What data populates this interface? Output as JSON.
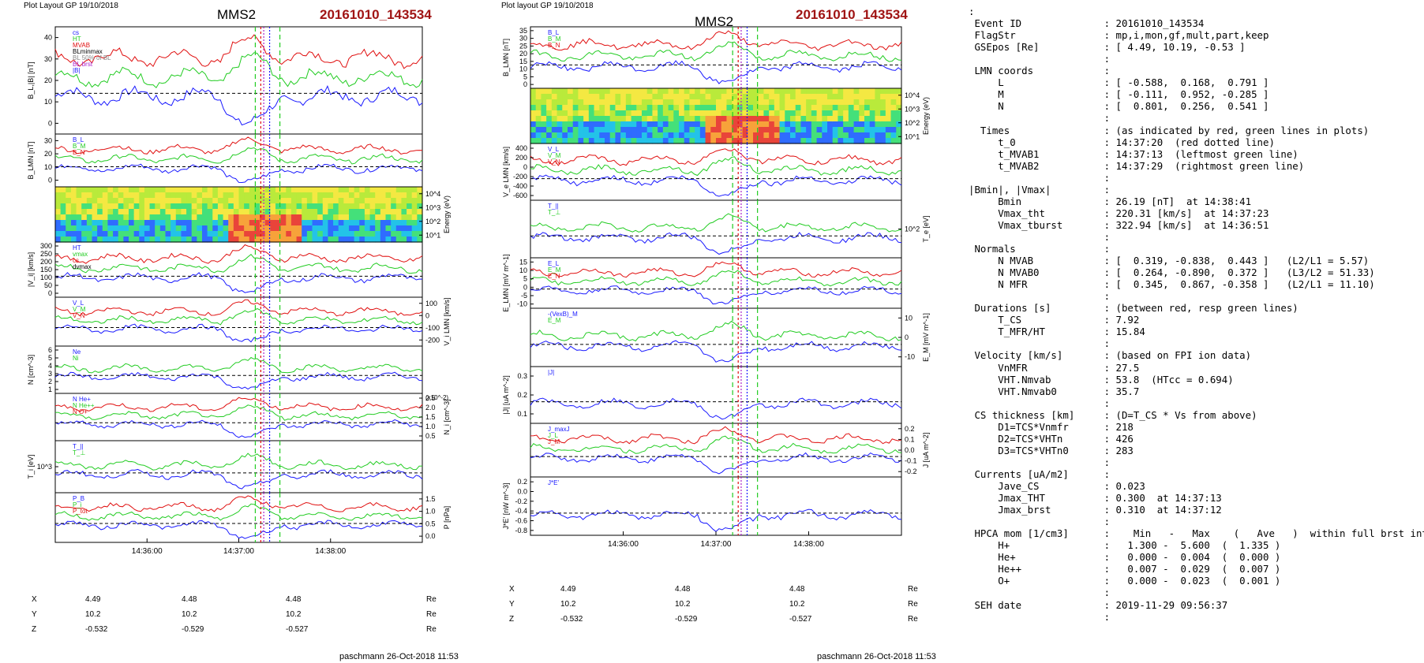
{
  "header": {
    "left_label": "Plot Layout GP 19/10/2018",
    "middle_label": "Plot layout GP 19/10/2018",
    "spacecraft": "MMS2",
    "event_id": "20161010_143534"
  },
  "footer": {
    "left_credit": "paschmann 26-Oct-2018 11:53",
    "middle_credit": "paschmann 26-Oct-2018 11:53"
  },
  "colors": {
    "blue": "#1a1aff",
    "red": "#e01010",
    "green": "#22cc22",
    "black": "#000000",
    "event_red": "#a01414",
    "grey": "#888888",
    "purple": "#aa22cc"
  },
  "chart_data": [
    {
      "type": "line",
      "figure": "left",
      "x_ticks": [
        "14:36:00",
        "14:37:00",
        "14:38:00"
      ],
      "markers": {
        "green_dashed": [
          "14:37:13",
          "14:37:29"
        ],
        "red_dotted": [
          "14:37:20"
        ]
      },
      "panels": [
        {
          "ylabel": "B_L,|B| [nT]",
          "yticks": [
            "0",
            "10",
            "20",
            "30",
            "40"
          ],
          "ylim": [
            -2,
            42
          ],
          "legend": [
            "cs",
            "HT",
            "MVAB",
            "BLminmax",
            "BL 50% of BL",
            "BL brst",
            "|B|"
          ]
        },
        {
          "ylabel": "B_LMN [nT]",
          "yticks": [
            "0",
            "10",
            "20",
            "30"
          ],
          "legend": [
            "B_L",
            "B_M",
            "B_N"
          ]
        },
        {
          "ylabel": "Energy (eV)",
          "yticks": [
            "10^1",
            "10^2",
            "10^3",
            "10^4"
          ],
          "type": "heatmap"
        },
        {
          "ylabel": "|V_i| [km/s]",
          "yticks": [
            "0",
            "50",
            "100",
            "150",
            "200",
            "250",
            "300"
          ],
          "legend": [
            "HT",
            "vmax",
            "cs",
            "dvmax"
          ]
        },
        {
          "ylabel": "V_i LMN [km/s]",
          "yticks": [
            "-200",
            "-100",
            "0",
            "100"
          ],
          "legend": [
            "V_L",
            "V_M",
            "V_N"
          ]
        },
        {
          "ylabel": "N [cm^-3]",
          "yticks": [
            "1",
            "2",
            "3",
            "4",
            "5",
            "6"
          ],
          "legend": [
            "Ne",
            "Ni"
          ]
        },
        {
          "ylabel": "N_i [cm^-3]",
          "yticks": [
            "0.5",
            "1.0",
            "1.5",
            "2.0",
            "2.5"
          ],
          "scale_note": "(x10^-2)",
          "legend": [
            "N He+",
            "N He++",
            "N O+"
          ]
        },
        {
          "ylabel": "T_i [eV]",
          "yticks": [
            "10^3"
          ],
          "legend": [
            "T_||",
            "T_⊥"
          ]
        },
        {
          "ylabel": "P [nPa]",
          "yticks": [
            "0.0",
            "0.5",
            "1.0",
            "1.5"
          ],
          "legend": [
            "P_B",
            "P_i",
            "P_tot"
          ]
        }
      ],
      "positions": {
        "rows": [
          {
            "label": "X",
            "values": [
              "4.49",
              "4.48",
              "4.48"
            ],
            "unit": "Re"
          },
          {
            "label": "Y",
            "values": [
              "10.2",
              "10.2",
              "10.2"
            ],
            "unit": "Re"
          },
          {
            "label": "Z",
            "values": [
              "-0.532",
              "-0.529",
              "-0.527"
            ],
            "unit": "Re"
          }
        ]
      }
    },
    {
      "type": "line",
      "figure": "middle",
      "x_ticks": [
        "14:36:00",
        "14:37:00",
        "14:38:00"
      ],
      "panels": [
        {
          "ylabel": "B_LMN [nT]",
          "yticks": [
            "0",
            "5",
            "10",
            "15",
            "20",
            "25",
            "30",
            "35"
          ],
          "legend": [
            "B_L",
            "B_M",
            "B_N"
          ]
        },
        {
          "ylabel": "Energy (eV)",
          "yticks": [
            "10^1",
            "10^2",
            "10^3",
            "10^4"
          ],
          "type": "heatmap"
        },
        {
          "ylabel": "V_e LMN [km/s]",
          "yticks": [
            "-600",
            "-400",
            "-200",
            "0",
            "200",
            "400"
          ],
          "legend": [
            "V_L",
            "V_M",
            "V_N"
          ]
        },
        {
          "ylabel": "T_e [eV]",
          "yticks": [
            "10^2"
          ],
          "legend": [
            "T_||",
            "T_⊥"
          ]
        },
        {
          "ylabel": "E_LMN [mV m^-1]",
          "yticks": [
            "-10",
            "-5",
            "0",
            "5",
            "10",
            "15"
          ],
          "legend": [
            "E_L",
            "E_M",
            "E_N"
          ]
        },
        {
          "ylabel": "E_M [mV m^-1]",
          "yticks": [
            "-10",
            "0",
            "10"
          ],
          "legend": [
            "-(VexB)_M",
            "E_M"
          ]
        },
        {
          "ylabel": "|J| [uA m^-2]",
          "yticks": [
            "0.1",
            "0.2",
            "0.3"
          ],
          "legend": [
            "|J|"
          ]
        },
        {
          "ylabel": "J [uA m^-2]",
          "yticks": [
            "-0.2",
            "-0.1",
            "0.0",
            "0.1",
            "0.2"
          ],
          "legend": [
            "J_maxJ",
            "J_L",
            "J_M"
          ]
        },
        {
          "ylabel": "J*E' [nW m^-3]",
          "yticks": [
            "-0.8",
            "-0.6",
            "-0.4",
            "-0.2",
            "0.0",
            "0.2"
          ],
          "legend": [
            "J*E'"
          ]
        }
      ],
      "positions": {
        "rows": [
          {
            "label": "X",
            "values": [
              "4.49",
              "4.48",
              "4.48"
            ],
            "unit": "Re"
          },
          {
            "label": "Y",
            "values": [
              "10.2",
              "10.2",
              "10.2"
            ],
            "unit": "Re"
          },
          {
            "label": "Z",
            "values": [
              "-0.532",
              "-0.529",
              "-0.527"
            ],
            "unit": "Re"
          }
        ]
      }
    }
  ],
  "info_lines": [
    ":",
    " Event ID              : 20161010_143534",
    " FlagStr               : mp,i,mon,gf,mult,part,keep",
    " GSEpos [Re]           : [ 4.49, 10.19, -0.53 ]",
    "                       :",
    " LMN coords            :",
    "     L                 : [ -0.588,  0.168,  0.791 ]",
    "     M                 : [ -0.111,  0.952, -0.285 ]",
    "     N                 : [  0.801,  0.256,  0.541 ]",
    "                       :",
    "  Times                : (as indicated by red, green lines in plots)",
    "     t_0               : 14:37:20  (red dotted line)",
    "     t_MVAB1           : 14:37:13  (leftmost green line)",
    "     t_MVAB2           : 14:37:29  (rightmost green line)",
    "                       :",
    "|Bmin|, |Vmax|         :",
    "     Bmin              : 26.19 [nT]  at 14:38:41",
    "     Vmax_tht          : 220.31 [km/s]  at 14:37:23",
    "     Vmax_tburst       : 322.94 [km/s]  at 14:36:51",
    "                       :",
    " Normals               :",
    "     N MVAB            : [  0.319, -0.838,  0.443 ]   (L2/L1 = 5.57)",
    "     N MVAB0           : [  0.264, -0.890,  0.372 ]   (L3/L2 = 51.33)",
    "     N MFR             : [  0.345,  0.867, -0.358 ]   (L2/L1 = 11.10)",
    "                       :",
    " Durations [s]         : (between red, resp green lines)",
    "     T_CS              : 7.92",
    "     T_MFR/HT          : 15.84",
    "                       :",
    " Velocity [km/s]       : (based on FPI ion data)",
    "     VnMFR             : 27.5",
    "     VHT.Nmvab         : 53.8  (HTcc = 0.694)",
    "     VHT.Nmvab0        : 35.7",
    "                       :",
    " CS thickness [km]     : (D=T_CS * Vs from above)",
    "     D1=TCS*Vnmfr      : 218",
    "     D2=TCS*VHTn       : 426",
    "     D3=TCS*VHTn0      : 283",
    "                       :",
    " Currents [uA/m2]      :",
    "     Jave_CS           : 0.023",
    "     Jmax_THT          : 0.300  at 14:37:13",
    "     Jmax_brst         : 0.310  at 14:37:12",
    "                       :",
    " HPCA mom [1/cm3]      :    Min   -   Max    (   Ave   )  within full brst int",
    "     H+                :   1.300 -  5.600  (  1.335 )",
    "     He+               :   0.000 -  0.004  (  0.000 )",
    "     He++              :   0.007 -  0.029  (  0.007 )",
    "     O+                :   0.000 -  0.023  (  0.001 )",
    "                       :",
    " SEH date              : 2019-11-29 09:56:37",
    "                       :"
  ]
}
